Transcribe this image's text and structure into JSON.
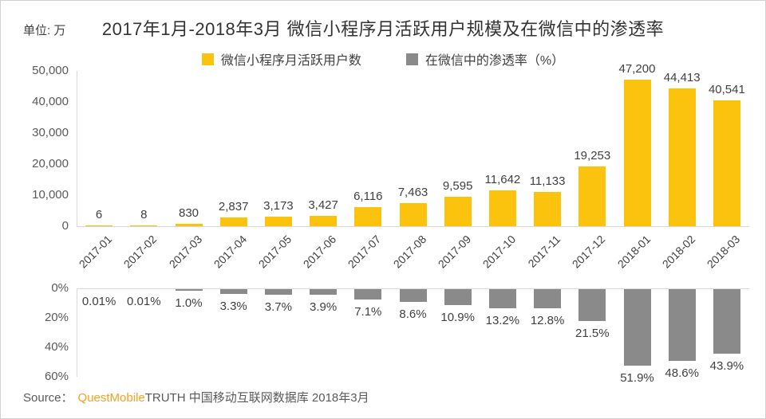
{
  "header": {
    "unit_label": "单位: 万",
    "title": "2017年1月-2018年3月 微信小程序月活跃用户规模及在微信中的渗透率"
  },
  "legend": {
    "items": [
      {
        "label": "微信小程序月活跃用户数",
        "color": "#FCC30E"
      },
      {
        "label": "在微信中的渗透率（%）",
        "color": "#8A8A8A"
      }
    ]
  },
  "chart_data": [
    {
      "type": "bar",
      "name": "微信小程序月活跃用户数",
      "unit": "万",
      "categories": [
        "2017-01",
        "2017-02",
        "2017-03",
        "2017-04",
        "2017-05",
        "2017-06",
        "2017-07",
        "2017-08",
        "2017-09",
        "2017-10",
        "2017-11",
        "2017-12",
        "2018-01",
        "2018-02",
        "2018-03"
      ],
      "values": [
        6,
        8,
        830,
        2837,
        3173,
        3427,
        6116,
        7463,
        9595,
        11642,
        11133,
        19253,
        47200,
        44413,
        40541
      ],
      "value_labels": [
        "6",
        "8",
        "830",
        "2,837",
        "3,173",
        "3,427",
        "6,116",
        "7,463",
        "9,595",
        "11,642",
        "11,133",
        "19,253",
        "47,200",
        "44,413",
        "40,541"
      ],
      "ylim": [
        0,
        50000
      ],
      "yticks": [
        "50,000",
        "40,000",
        "30,000",
        "20,000",
        "10,000",
        "0"
      ],
      "ytick_values": [
        50000,
        40000,
        30000,
        20000,
        10000,
        0
      ],
      "bar_color": "#FCC30E",
      "grid": false,
      "legend_position": "top",
      "x_labels_rotated": true
    },
    {
      "type": "bar",
      "name": "在微信中的渗透率（%）",
      "categories": [
        "2017-01",
        "2017-02",
        "2017-03",
        "2017-04",
        "2017-05",
        "2017-06",
        "2017-07",
        "2017-08",
        "2017-09",
        "2017-10",
        "2017-11",
        "2017-12",
        "2018-01",
        "2018-02",
        "2018-03"
      ],
      "values": [
        0.01,
        0.01,
        1.0,
        3.3,
        3.7,
        3.9,
        7.1,
        8.6,
        10.9,
        13.2,
        12.8,
        21.5,
        51.9,
        48.6,
        43.9
      ],
      "value_labels": [
        "0.01%",
        "0.01%",
        "1.0%",
        "3.3%",
        "3.7%",
        "3.9%",
        "7.1%",
        "8.6%",
        "10.9%",
        "13.2%",
        "12.8%",
        "21.5%",
        "51.9%",
        "48.6%",
        "43.9%"
      ],
      "ylim": [
        0,
        60
      ],
      "yticks": [
        "0%",
        "20%",
        "40%",
        "60%"
      ],
      "ytick_values": [
        0,
        20,
        40,
        60
      ],
      "axis_inverted": true,
      "bar_color": "#8A8A8A",
      "grid": false,
      "show_x_labels": false
    }
  ],
  "source": {
    "prefix": "Source：",
    "brand": "QuestMobile",
    "brand_color": "#F7A11F",
    "rest": "TRUTH 中国移动互联网数据库 2018年3月"
  },
  "colors": {
    "axis_line": "#D9D9D9",
    "tick_text": "#595959",
    "value_text": "#404040",
    "title_text": "#333333"
  }
}
